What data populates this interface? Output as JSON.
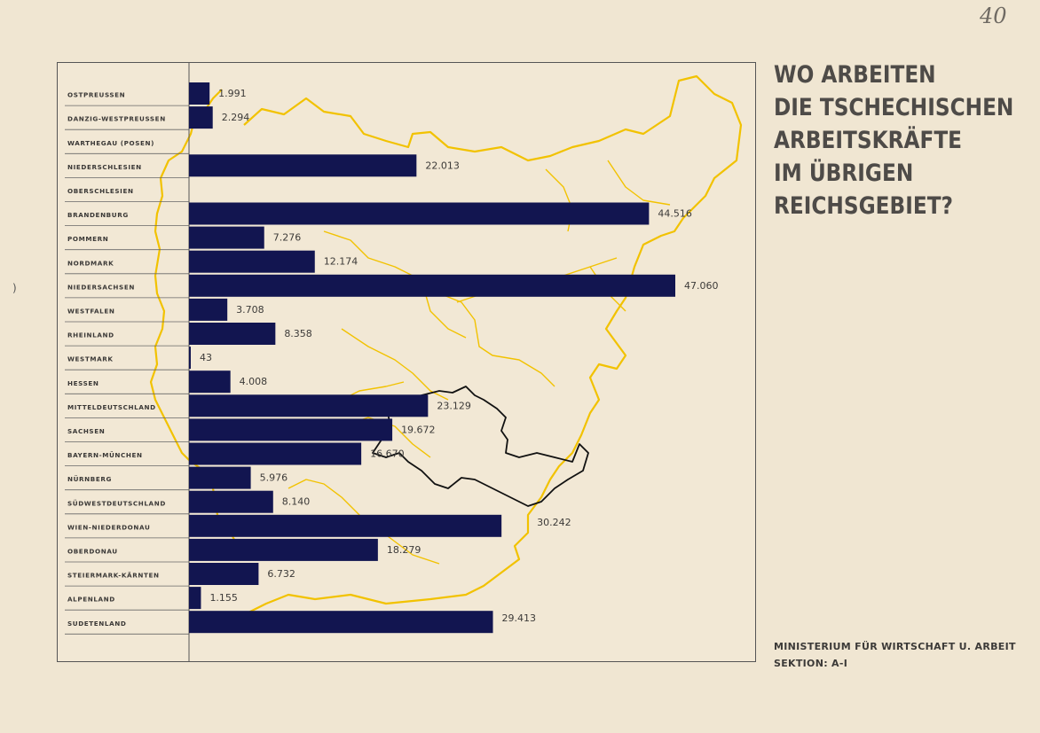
{
  "page_number": "40",
  "margin_mark": ")",
  "title_lines": [
    "WO ARBEITEN",
    "DIE TSCHECHISCHEN",
    "ARBEITSKRÄFTE",
    "IM ÜBRIGEN",
    "REICHSGEBIET?"
  ],
  "credit": {
    "line1": "MINISTERIUM FÜR WIRTSCHAFT U. ARBEIT",
    "line2": "SEKTION: A-I"
  },
  "colors": {
    "bar": "#121550",
    "map_outline": "#f2c200",
    "protectorate_outline": "#111111",
    "text": "#3c3a38"
  },
  "chart_data": {
    "type": "bar",
    "orientation": "horizontal",
    "categories": [
      "OSTPREUSSEN",
      "DANZIG-WESTPREUSSEN",
      "WARTHEGAU (POSEN)",
      "NIEDERSCHLESIEN",
      "OBERSCHLESIEN",
      "BRANDENBURG",
      "POMMERN",
      "NORDMARK",
      "NIEDERSACHSEN",
      "WESTFALEN",
      "RHEINLAND",
      "WESTMARK",
      "HESSEN",
      "MITTELDEUTSCHLAND",
      "SACHSEN",
      "BAYERN-MÜNCHEN",
      "NÜRNBERG",
      "SÜDWESTDEUTSCHLAND",
      "WIEN-NIEDERDONAU",
      "OBERDONAU",
      "STEIERMARK-KÄRNTEN",
      "ALPENLAND",
      "SUDETENLAND"
    ],
    "values": [
      1991,
      2294,
      null,
      22013,
      null,
      44516,
      7276,
      12174,
      47060,
      3708,
      8358,
      43,
      4008,
      23129,
      19672,
      16670,
      5976,
      8140,
      30242,
      18279,
      6732,
      1155,
      29413
    ],
    "value_labels": [
      "1.991",
      "2.294",
      "",
      "22.013",
      "",
      "44.516",
      "7.276",
      "12.174",
      "47.060",
      "3.708",
      "8.358",
      "43",
      "4.008",
      "23.129",
      "19.672",
      "16.670",
      "5.976",
      "8.140",
      "30.242",
      "18.279",
      "6.732",
      "1.155",
      "29.413"
    ],
    "xlim": [
      0,
      47060
    ],
    "background": "map of the Reich with the Protectorate outlined"
  }
}
